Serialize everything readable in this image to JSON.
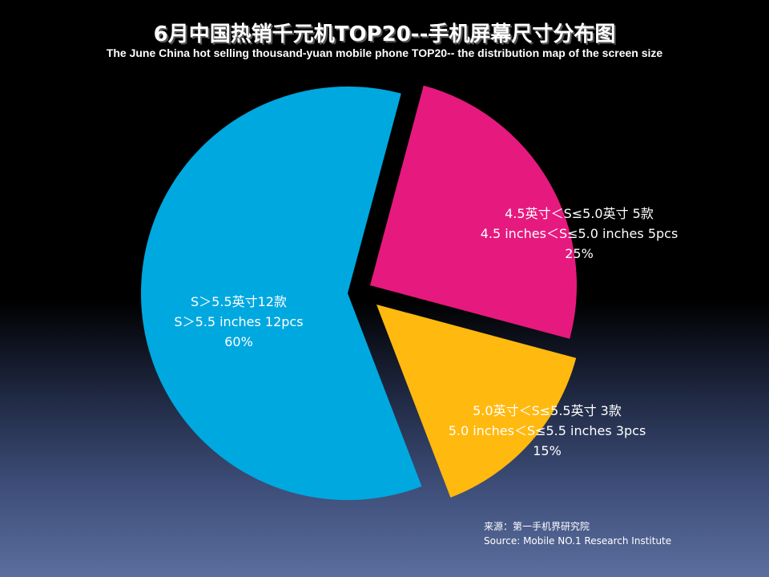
{
  "chart_data": {
    "type": "pie",
    "title": "6月中国热销千元机TOP20--手机屏幕尺寸分布图",
    "subtitle": "The  June  China hot selling thousand-yuan mobile phone TOP20-- the distribution map of the screen size",
    "slices": [
      {
        "label_cn": "4.5英寸＜S≤5.0英寸 5款",
        "label_en": "4.5 inches＜S≤5.0 inches 5pcs",
        "percent_label": "25%",
        "value": 25,
        "color": "#E6197E"
      },
      {
        "label_cn": "5.0英寸＜S≤5.5英寸 3款",
        "label_en": "5.0 inches＜S≤5.5 inches 3pcs",
        "percent_label": "15%",
        "value": 15,
        "color": "#FFB90F"
      },
      {
        "label_cn": "S＞5.5英寸12款",
        "label_en": "S＞5.5 inches 12pcs",
        "percent_label": "60%",
        "value": 60,
        "color": "#00A8E0"
      }
    ]
  },
  "source": {
    "cn": "来源：第一手机界研究院",
    "en": "Source: Mobile NO.1 Research Institute"
  }
}
